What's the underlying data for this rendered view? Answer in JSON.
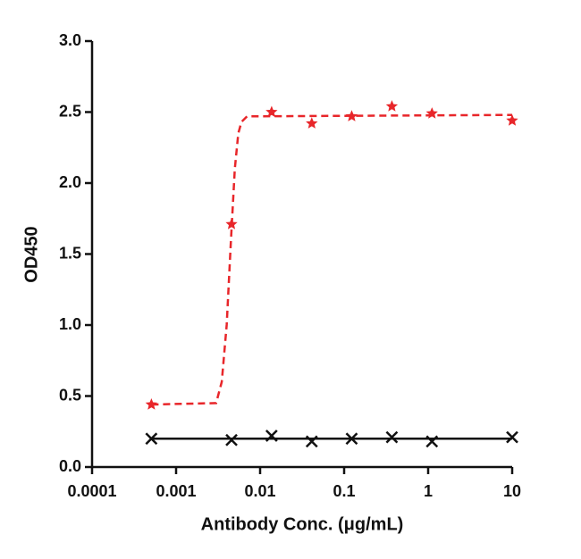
{
  "chart_data": {
    "type": "scatter",
    "x_label": "Antibody Conc. (μg/mL)",
    "y_label": "OD450",
    "xscale": "log",
    "xlim": [
      0.0001,
      10
    ],
    "xticks": [
      0.0001,
      0.001,
      0.01,
      0.1,
      1,
      10
    ],
    "ylim": [
      0,
      3
    ],
    "yticks": [
      {
        "value": 0,
        "label": "0.0"
      },
      0.5,
      {
        "value": 1,
        "label": "1.0"
      },
      1.5,
      {
        "value": 2,
        "label": "2.0"
      },
      2.5,
      {
        "value": 3,
        "label": "3.0"
      }
    ],
    "series": [
      {
        "color": "#e8262a",
        "marker": "star",
        "line_style": "dashed",
        "x": [
          0.000508,
          0.00457,
          0.0137,
          0.0412,
          0.123,
          0.37,
          1.11,
          10
        ],
        "values": [
          0.44,
          1.71,
          2.5,
          2.42,
          2.47,
          2.54,
          2.49,
          2.44
        ],
        "fit": {
          "x": [
            0.000508,
            0.003,
            0.0035,
            0.004,
            0.0045,
            0.005,
            0.0055,
            0.006,
            0.007,
            10
          ],
          "values": [
            0.44,
            0.45,
            0.6,
            1.0,
            1.6,
            2.1,
            2.35,
            2.43,
            2.47,
            2.48
          ]
        }
      },
      {
        "color": "#111111",
        "marker": "cross",
        "line_style": "solid",
        "x": [
          0.000508,
          0.00457,
          0.0137,
          0.0412,
          0.123,
          0.37,
          1.11,
          10
        ],
        "values": [
          0.2,
          0.19,
          0.22,
          0.18,
          0.2,
          0.21,
          0.18,
          0.21
        ],
        "fit": {
          "x": [
            0.000508,
            10
          ],
          "values": [
            0.2,
            0.2
          ]
        }
      }
    ]
  }
}
